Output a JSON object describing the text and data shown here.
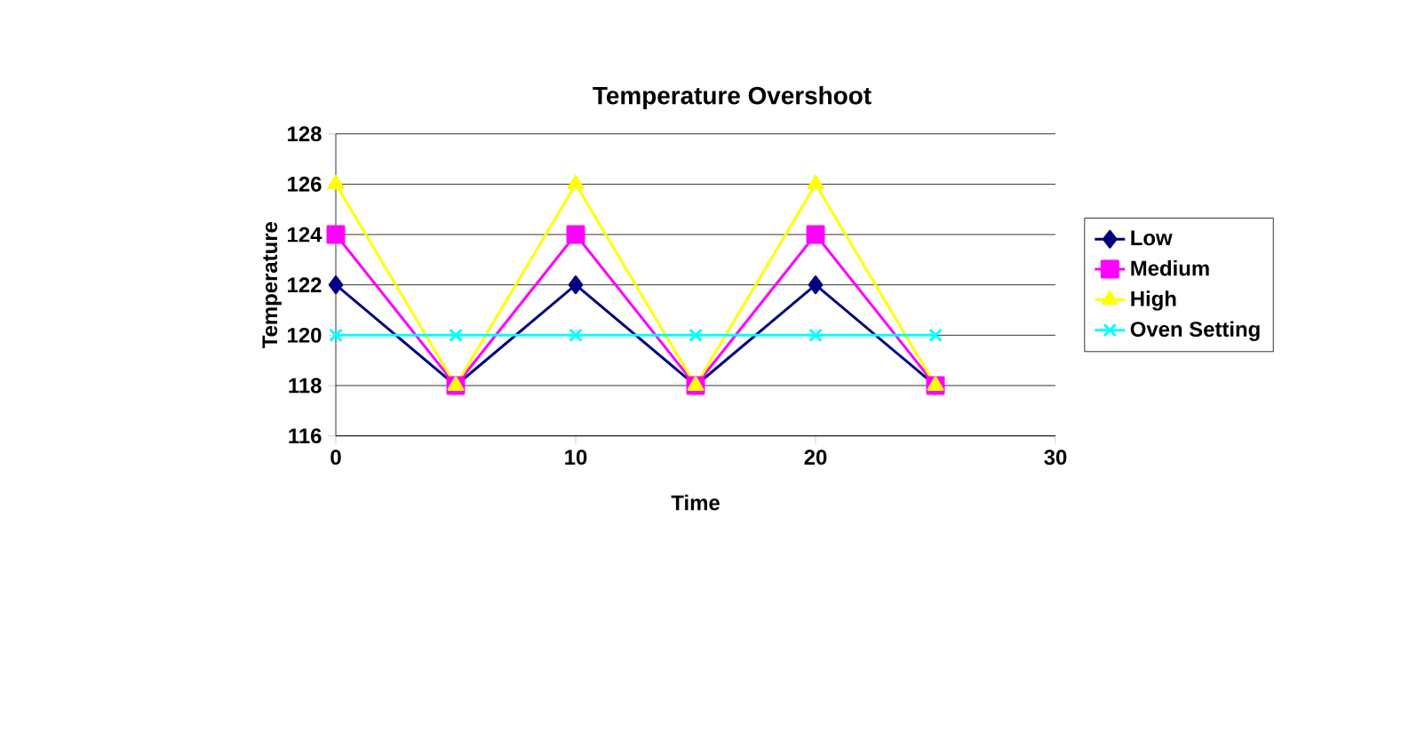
{
  "chart_data": {
    "type": "line",
    "title": "Temperature Overshoot",
    "xlabel": "Time",
    "ylabel": "Temperature",
    "x": [
      0,
      5,
      10,
      15,
      20,
      25
    ],
    "series": [
      {
        "name": "Low",
        "color": "#000080",
        "marker": "diamond",
        "values": [
          122,
          118,
          122,
          118,
          122,
          118
        ]
      },
      {
        "name": "Medium",
        "color": "#ff00ff",
        "marker": "square",
        "values": [
          124,
          118,
          124,
          118,
          124,
          118
        ]
      },
      {
        "name": "High",
        "color": "#ffff00",
        "marker": "triangle",
        "values": [
          126,
          118,
          126,
          118,
          126,
          118
        ]
      },
      {
        "name": "Oven Setting",
        "color": "#00ffff",
        "marker": "cross",
        "values": [
          120,
          120,
          120,
          120,
          120,
          120
        ]
      }
    ],
    "xlim": [
      0,
      30
    ],
    "xticks": [
      0,
      10,
      20,
      30
    ],
    "ylim": [
      116,
      128
    ],
    "yticks": [
      116,
      118,
      120,
      122,
      124,
      126,
      128
    ],
    "grid": "y",
    "legend": "right"
  }
}
